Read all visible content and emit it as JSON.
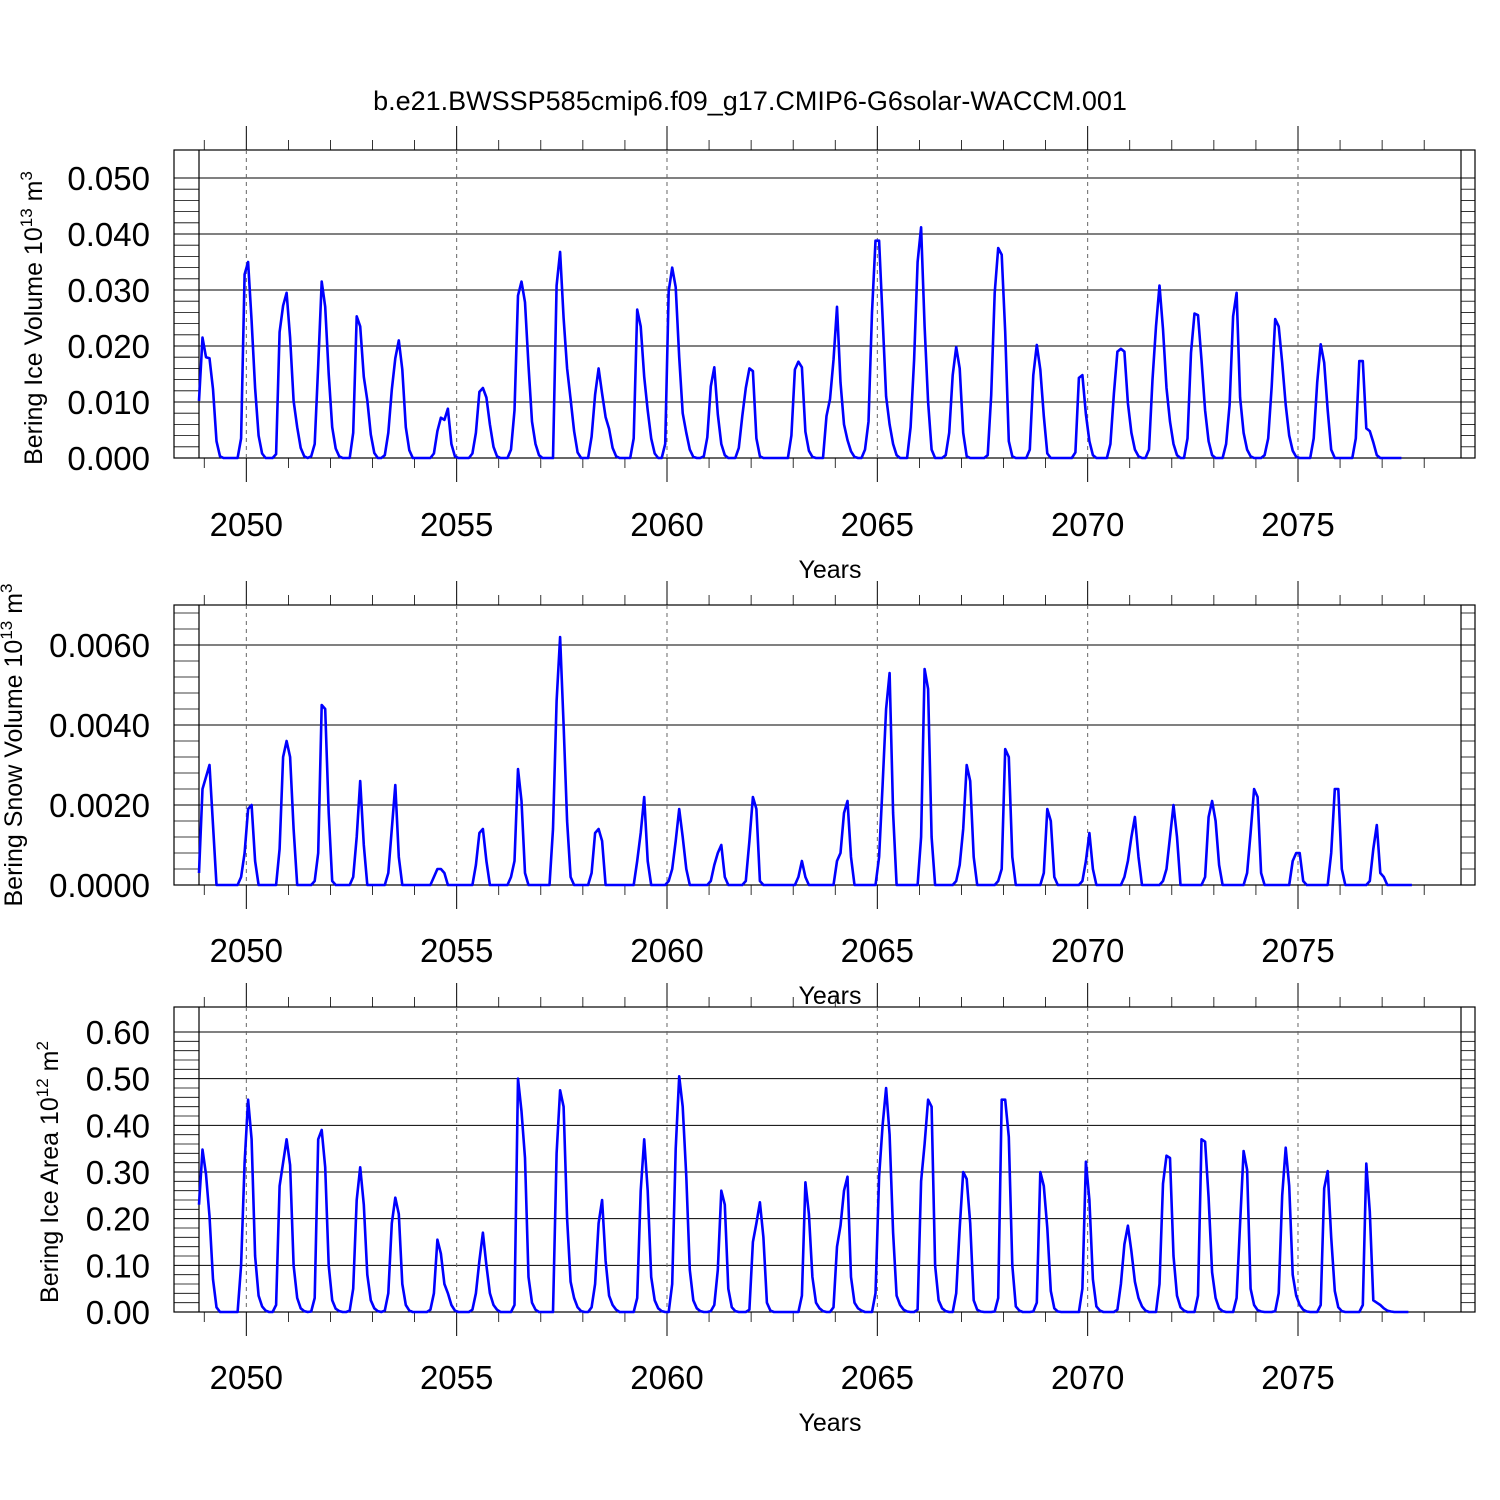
{
  "title": "b.e21.BWSSP585cmip6.f09_g17.CMIP6-G6solar-WACCM.001",
  "chart_data": [
    {
      "type": "line",
      "name_key": "ice-volume",
      "ylabel": "Bering Ice Volume 10",
      "ylabel_sup": "13",
      "ylabel_unit": " m",
      "ylabel_unit_sup": "3",
      "xlabel": "Years",
      "xlim": [
        2048.875,
        2078.875
      ],
      "ylim": [
        0,
        0.05
      ],
      "ytick_values": [
        0,
        0.01,
        0.02,
        0.03,
        0.04,
        0.05
      ],
      "ytick_labels": [
        "0.000",
        "0.010",
        "0.020",
        "0.030",
        "0.040",
        "0.050"
      ],
      "xtick_values": [
        2050,
        2055,
        2060,
        2065,
        2070,
        2075
      ],
      "xtick_labels": [
        "2050",
        "2055",
        "2060",
        "2065",
        "2070",
        "2075"
      ],
      "line_color": "#0000ff",
      "x_start": 2048.875,
      "x_step": 0.08333,
      "values": [
        0.0102,
        0.0215,
        0.018,
        0.0178,
        0.0123,
        0.003,
        0.0003,
        0.0,
        0.0,
        0.0,
        0.0,
        0.0,
        0.0035,
        0.0328,
        0.035,
        0.0245,
        0.0125,
        0.004,
        0.0008,
        0.0,
        0.0,
        0.0,
        0.0007,
        0.0225,
        0.0272,
        0.0295,
        0.0215,
        0.0102,
        0.0055,
        0.0018,
        0.0003,
        0.0,
        0.0003,
        0.0025,
        0.0165,
        0.0315,
        0.027,
        0.015,
        0.0055,
        0.0017,
        0.0003,
        0.0,
        0.0,
        0.0,
        0.0045,
        0.0253,
        0.0235,
        0.0145,
        0.0103,
        0.0042,
        0.0009,
        0.0,
        0.0,
        0.0005,
        0.0045,
        0.0122,
        0.0178,
        0.021,
        0.0158,
        0.0055,
        0.0014,
        0.0,
        0.0,
        0.0,
        0.0,
        0.0,
        0.0,
        0.0008,
        0.0048,
        0.0072,
        0.0068,
        0.0088,
        0.0025,
        0.0003,
        0.0,
        0.0,
        0.0,
        0.0,
        0.0008,
        0.0045,
        0.0118,
        0.0125,
        0.0108,
        0.006,
        0.002,
        0.0003,
        0.0,
        0.0,
        0.0,
        0.0015,
        0.0085,
        0.029,
        0.0315,
        0.0278,
        0.0165,
        0.0065,
        0.0025,
        0.0005,
        0.0,
        0.0,
        0.0,
        0.0,
        0.0308,
        0.0368,
        0.025,
        0.016,
        0.0105,
        0.0048,
        0.001,
        0.0,
        0.0,
        0.0,
        0.0038,
        0.0113,
        0.016,
        0.0115,
        0.0073,
        0.0052,
        0.0018,
        0.0003,
        0.0,
        0.0,
        0.0,
        0.0,
        0.0035,
        0.0265,
        0.0235,
        0.0145,
        0.0085,
        0.0035,
        0.0008,
        0.0,
        0.0,
        0.0025,
        0.0298,
        0.034,
        0.0305,
        0.018,
        0.008,
        0.0045,
        0.0015,
        0.0002,
        0.0,
        0.0,
        0.0003,
        0.0037,
        0.0128,
        0.0162,
        0.0078,
        0.0025,
        0.0005,
        0.0,
        0.0,
        0.0,
        0.0018,
        0.0075,
        0.0125,
        0.016,
        0.0155,
        0.0035,
        0.0003,
        0.0,
        0.0,
        0.0,
        0.0,
        0.0,
        0.0,
        0.0,
        0.0,
        0.004,
        0.0158,
        0.0172,
        0.0162,
        0.0047,
        0.0013,
        0.0002,
        0.0,
        0.0,
        0.0,
        0.0075,
        0.0105,
        0.0175,
        0.027,
        0.0135,
        0.006,
        0.0032,
        0.0012,
        0.0002,
        0.0,
        0.0,
        0.0015,
        0.0065,
        0.026,
        0.0388,
        0.0388,
        0.025,
        0.011,
        0.006,
        0.0025,
        0.0005,
        0.0,
        0.0,
        0.0,
        0.0055,
        0.0175,
        0.035,
        0.0412,
        0.0235,
        0.01,
        0.0015,
        0.0,
        0.0,
        0.0,
        0.0005,
        0.0045,
        0.0148,
        0.0198,
        0.016,
        0.0045,
        0.0003,
        0.0,
        0.0,
        0.0,
        0.0,
        0.0,
        0.0005,
        0.0112,
        0.0295,
        0.0375,
        0.0363,
        0.0225,
        0.003,
        0.0003,
        0.0,
        0.0,
        0.0,
        0.0,
        0.0015,
        0.0148,
        0.0202,
        0.0158,
        0.0075,
        0.0008,
        0.0,
        0.0,
        0.0,
        0.0,
        0.0,
        0.0,
        0.0,
        0.001,
        0.0143,
        0.0148,
        0.0078,
        0.003,
        0.0005,
        0.0,
        0.0,
        0.0,
        0.0,
        0.0025,
        0.0115,
        0.019,
        0.0195,
        0.019,
        0.0098,
        0.0045,
        0.0015,
        0.0003,
        0.0,
        0.0,
        0.0015,
        0.014,
        0.0235,
        0.0308,
        0.023,
        0.0125,
        0.0065,
        0.0025,
        0.0005,
        0.0,
        0.0,
        0.0035,
        0.0188,
        0.0258,
        0.0255,
        0.0175,
        0.0085,
        0.003,
        0.0005,
        0.0,
        0.0,
        0.0,
        0.0025,
        0.0095,
        0.0253,
        0.0295,
        0.0108,
        0.0045,
        0.0015,
        0.0003,
        0.0,
        0.0,
        0.0,
        0.0005,
        0.0035,
        0.0128,
        0.0248,
        0.0235,
        0.017,
        0.0095,
        0.004,
        0.0013,
        0.0002,
        0.0,
        0.0,
        0.0,
        0.0,
        0.0035,
        0.0135,
        0.0203,
        0.017,
        0.0085,
        0.0015,
        0.0,
        0.0,
        0.0,
        0.0,
        0.0,
        0.0,
        0.0035,
        0.0173,
        0.0173,
        0.0053,
        0.0048,
        0.0028,
        0.0005,
        0.0,
        0.0,
        0.0,
        0.0,
        0.0,
        0.0,
        0.0
      ]
    },
    {
      "type": "line",
      "name_key": "snow-volume",
      "ylabel": "Bering Snow Volume 10",
      "ylabel_sup": "13",
      "ylabel_unit": " m",
      "ylabel_unit_sup": "3",
      "xlabel": "Years",
      "xlim": [
        2048.875,
        2078.875
      ],
      "ylim": [
        0,
        0.007
      ],
      "ytick_values": [
        0,
        0.002,
        0.004,
        0.006
      ],
      "ytick_labels": [
        "0.0000",
        "0.0020",
        "0.0040",
        "0.0060"
      ],
      "xtick_values": [
        2050,
        2055,
        2060,
        2065,
        2070,
        2075
      ],
      "xtick_labels": [
        "2050",
        "2055",
        "2060",
        "2065",
        "2070",
        "2075"
      ],
      "line_color": "#0000ff",
      "x_start": 2048.875,
      "x_step": 0.08333,
      "values": [
        0.0003,
        0.0024,
        0.0027,
        0.003,
        0.0015,
        0.0,
        0.0,
        0.0,
        0.0,
        0.0,
        0.0,
        0.0,
        0.0002,
        0.0008,
        0.0019,
        0.002,
        0.0006,
        0.0,
        0.0,
        0.0,
        0.0,
        0.0,
        0.0,
        0.0009,
        0.0032,
        0.0036,
        0.0032,
        0.0014,
        0.0,
        0.0,
        0.0,
        0.0,
        0.0,
        0.0001,
        0.0008,
        0.0045,
        0.0044,
        0.0018,
        0.0001,
        0.0,
        0.0,
        0.0,
        0.0,
        0.0,
        0.0002,
        0.0012,
        0.0026,
        0.001,
        0.0,
        0.0,
        0.0,
        0.0,
        0.0,
        0.0,
        0.0003,
        0.0014,
        0.0025,
        0.0007,
        0.0,
        0.0,
        0.0,
        0.0,
        0.0,
        0.0,
        0.0,
        0.0,
        0.0,
        0.0002,
        0.0004,
        0.0004,
        0.0003,
        0.0,
        0.0,
        0.0,
        0.0,
        0.0,
        0.0,
        0.0,
        0.0,
        0.0005,
        0.0013,
        0.0014,
        0.0006,
        0.0,
        0.0,
        0.0,
        0.0,
        0.0,
        0.0,
        0.0002,
        0.0006,
        0.0029,
        0.0021,
        0.0003,
        0.0,
        0.0,
        0.0,
        0.0,
        0.0,
        0.0,
        0.0,
        0.0014,
        0.0046,
        0.0062,
        0.004,
        0.0016,
        0.0002,
        0.0,
        0.0,
        0.0,
        0.0,
        0.0,
        0.0003,
        0.0013,
        0.0014,
        0.0011,
        0.0,
        0.0,
        0.0,
        0.0,
        0.0,
        0.0,
        0.0,
        0.0,
        0.0,
        0.0006,
        0.0013,
        0.0022,
        0.0006,
        0.0,
        0.0,
        0.0,
        0.0,
        0.0,
        0.0001,
        0.0004,
        0.0011,
        0.0019,
        0.0012,
        0.0004,
        0.0,
        0.0,
        0.0,
        0.0,
        0.0,
        0.0,
        0.0001,
        0.0005,
        0.0008,
        0.001,
        0.0002,
        0.0,
        0.0,
        0.0,
        0.0,
        0.0,
        0.0001,
        0.0011,
        0.0022,
        0.0019,
        0.0001,
        0.0,
        0.0,
        0.0,
        0.0,
        0.0,
        0.0,
        0.0,
        0.0,
        0.0,
        0.0,
        0.0002,
        0.0006,
        0.0002,
        0.0,
        0.0,
        0.0,
        0.0,
        0.0,
        0.0,
        0.0,
        0.0,
        0.0006,
        0.0008,
        0.0018,
        0.0021,
        0.0007,
        0.0,
        0.0,
        0.0,
        0.0,
        0.0,
        0.0,
        0.0,
        0.0007,
        0.0025,
        0.0044,
        0.0053,
        0.0018,
        0.0,
        0.0,
        0.0,
        0.0,
        0.0,
        0.0,
        0.0,
        0.0012,
        0.0054,
        0.0049,
        0.0012,
        0.0,
        0.0,
        0.0,
        0.0,
        0.0,
        0.0,
        0.0001,
        0.0005,
        0.0014,
        0.003,
        0.0026,
        0.0007,
        0.0,
        0.0,
        0.0,
        0.0,
        0.0,
        0.0,
        0.0001,
        0.0004,
        0.0034,
        0.0032,
        0.0007,
        0.0,
        0.0,
        0.0,
        0.0,
        0.0,
        0.0,
        0.0,
        0.0,
        0.0003,
        0.0019,
        0.0016,
        0.0002,
        0.0,
        0.0,
        0.0,
        0.0,
        0.0,
        0.0,
        0.0,
        0.0001,
        0.0006,
        0.0013,
        0.0004,
        0.0,
        0.0,
        0.0,
        0.0,
        0.0,
        0.0,
        0.0,
        0.0,
        0.0002,
        0.0006,
        0.0012,
        0.0017,
        0.0007,
        0.0,
        0.0,
        0.0,
        0.0,
        0.0,
        0.0,
        0.0001,
        0.0004,
        0.0012,
        0.002,
        0.0012,
        0.0,
        0.0,
        0.0,
        0.0,
        0.0,
        0.0,
        0.0,
        0.0002,
        0.0017,
        0.0021,
        0.0016,
        0.0005,
        0.0,
        0.0,
        0.0,
        0.0,
        0.0,
        0.0,
        0.0,
        0.0003,
        0.0013,
        0.0024,
        0.0022,
        0.0003,
        0.0,
        0.0,
        0.0,
        0.0,
        0.0,
        0.0,
        0.0,
        0.0,
        0.0006,
        0.0008,
        0.0008,
        0.0001,
        0.0,
        0.0,
        0.0,
        0.0,
        0.0,
        0.0,
        0.0,
        0.0008,
        0.0024,
        0.0024,
        0.0004,
        0.0,
        0.0,
        0.0,
        0.0,
        0.0,
        0.0,
        0.0,
        0.0001,
        0.0009,
        0.0015,
        0.0003,
        0.0002,
        0.0,
        0.0,
        0.0,
        0.0,
        0.0,
        0.0,
        0.0,
        0.0
      ]
    },
    {
      "type": "line",
      "name_key": "ice-area",
      "ylabel": "Bering Ice Area 10",
      "ylabel_sup": "12",
      "ylabel_unit": " m",
      "ylabel_unit_sup": "2",
      "xlabel": "Years",
      "xlim": [
        2048.875,
        2078.875
      ],
      "ylim": [
        0,
        0.6
      ],
      "ytick_values": [
        0,
        0.1,
        0.2,
        0.3,
        0.4,
        0.5,
        0.6
      ],
      "ytick_labels": [
        "0.00",
        "0.10",
        "0.20",
        "0.30",
        "0.40",
        "0.50",
        "0.60"
      ],
      "xtick_values": [
        2050,
        2055,
        2060,
        2065,
        2070,
        2075
      ],
      "xtick_labels": [
        "2050",
        "2055",
        "2060",
        "2065",
        "2070",
        "2075"
      ],
      "line_color": "#0000ff",
      "x_start": 2048.875,
      "x_step": 0.08333,
      "values": [
        0.23,
        0.348,
        0.295,
        0.205,
        0.07,
        0.01,
        0.0,
        0.0,
        0.0,
        0.0,
        0.0,
        0.0,
        0.1,
        0.32,
        0.455,
        0.37,
        0.12,
        0.035,
        0.012,
        0.003,
        0.0,
        0.0,
        0.015,
        0.27,
        0.32,
        0.37,
        0.315,
        0.1,
        0.03,
        0.008,
        0.002,
        0.0,
        0.001,
        0.03,
        0.37,
        0.39,
        0.31,
        0.1,
        0.025,
        0.007,
        0.002,
        0.0,
        0.0,
        0.003,
        0.05,
        0.24,
        0.31,
        0.23,
        0.08,
        0.025,
        0.008,
        0.002,
        0.0,
        0.003,
        0.04,
        0.19,
        0.245,
        0.21,
        0.06,
        0.015,
        0.003,
        0.0,
        0.0,
        0.0,
        0.0,
        0.0,
        0.005,
        0.04,
        0.155,
        0.125,
        0.06,
        0.04,
        0.015,
        0.003,
        0.0,
        0.0,
        0.0,
        0.0,
        0.005,
        0.04,
        0.11,
        0.17,
        0.1,
        0.04,
        0.015,
        0.005,
        0.0,
        0.0,
        0.0,
        0.0,
        0.015,
        0.5,
        0.43,
        0.33,
        0.075,
        0.02,
        0.005,
        0.0,
        0.0,
        0.0,
        0.0,
        0.0,
        0.34,
        0.475,
        0.44,
        0.2,
        0.065,
        0.03,
        0.01,
        0.002,
        0.0,
        0.0,
        0.01,
        0.06,
        0.19,
        0.24,
        0.11,
        0.035,
        0.015,
        0.005,
        0.0,
        0.0,
        0.0,
        0.0,
        0.0,
        0.03,
        0.26,
        0.37,
        0.26,
        0.075,
        0.025,
        0.008,
        0.002,
        0.0,
        0.0,
        0.06,
        0.35,
        0.505,
        0.44,
        0.29,
        0.09,
        0.025,
        0.008,
        0.002,
        0.0,
        0.0,
        0.002,
        0.015,
        0.09,
        0.26,
        0.23,
        0.05,
        0.01,
        0.002,
        0.0,
        0.0,
        0.0,
        0.005,
        0.15,
        0.19,
        0.235,
        0.16,
        0.02,
        0.003,
        0.0,
        0.0,
        0.0,
        0.0,
        0.0,
        0.0,
        0.0,
        0.0,
        0.035,
        0.278,
        0.21,
        0.075,
        0.02,
        0.008,
        0.002,
        0.0,
        0.0,
        0.01,
        0.14,
        0.185,
        0.26,
        0.29,
        0.075,
        0.02,
        0.008,
        0.003,
        0.0,
        0.0,
        0.0,
        0.04,
        0.29,
        0.4,
        0.48,
        0.38,
        0.17,
        0.035,
        0.015,
        0.005,
        0.001,
        0.0,
        0.0,
        0.005,
        0.28,
        0.36,
        0.455,
        0.44,
        0.1,
        0.025,
        0.008,
        0.002,
        0.0,
        0.0,
        0.04,
        0.18,
        0.3,
        0.285,
        0.19,
        0.025,
        0.005,
        0.001,
        0.0,
        0.0,
        0.0,
        0.001,
        0.03,
        0.455,
        0.455,
        0.375,
        0.1,
        0.012,
        0.003,
        0.0,
        0.0,
        0.0,
        0.001,
        0.02,
        0.3,
        0.27,
        0.18,
        0.045,
        0.008,
        0.001,
        0.0,
        0.0,
        0.0,
        0.0,
        0.0,
        0.0,
        0.05,
        0.322,
        0.24,
        0.07,
        0.012,
        0.003,
        0.0,
        0.0,
        0.0,
        0.0,
        0.005,
        0.06,
        0.145,
        0.185,
        0.13,
        0.065,
        0.03,
        0.012,
        0.003,
        0.0,
        0.0,
        0.0,
        0.06,
        0.275,
        0.335,
        0.33,
        0.12,
        0.035,
        0.01,
        0.003,
        0.0,
        0.0,
        0.0,
        0.035,
        0.37,
        0.365,
        0.245,
        0.085,
        0.03,
        0.008,
        0.002,
        0.0,
        0.0,
        0.0,
        0.03,
        0.19,
        0.345,
        0.305,
        0.05,
        0.015,
        0.004,
        0.001,
        0.0,
        0.0,
        0.0,
        0.002,
        0.04,
        0.25,
        0.352,
        0.27,
        0.08,
        0.035,
        0.015,
        0.005,
        0.001,
        0.0,
        0.0,
        0.0,
        0.015,
        0.265,
        0.302,
        0.16,
        0.045,
        0.01,
        0.002,
        0.0,
        0.0,
        0.0,
        0.0,
        0.0,
        0.015,
        0.318,
        0.215,
        0.025,
        0.02,
        0.015,
        0.008,
        0.003,
        0.001,
        0.0,
        0.0,
        0.0,
        0.0,
        0.0
      ]
    }
  ]
}
